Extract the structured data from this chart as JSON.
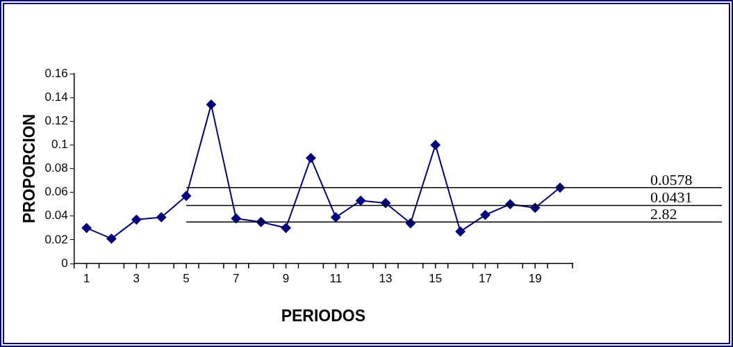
{
  "chart_data": {
    "type": "line",
    "xlabel": "PERIODOS",
    "ylabel": "PROPORCION",
    "x": [
      1,
      2,
      3,
      4,
      5,
      6,
      7,
      8,
      9,
      10,
      11,
      12,
      13,
      14,
      15,
      16,
      17,
      18,
      19,
      20
    ],
    "series": [
      {
        "color": "#000080",
        "values": [
          0.03,
          0.021,
          0.037,
          0.039,
          0.057,
          0.134,
          0.038,
          0.035,
          0.03,
          0.089,
          0.039,
          0.053,
          0.051,
          0.034,
          0.1,
          0.027,
          0.041,
          0.05,
          0.047,
          0.064
        ]
      }
    ],
    "xlim": [
      0.5,
      20.5
    ],
    "xticks": [
      {
        "value": 0.5,
        "label": null
      },
      1,
      {
        "value": 1.5,
        "label": null
      },
      {
        "value": 2.5,
        "label": null
      },
      3,
      {
        "value": 3.5,
        "label": null
      },
      {
        "value": 4.5,
        "label": null
      },
      5,
      {
        "value": 5.5,
        "label": null
      },
      {
        "value": 6.5,
        "label": null
      },
      7,
      {
        "value": 7.5,
        "label": null
      },
      {
        "value": 8.5,
        "label": null
      },
      9,
      {
        "value": 9.5,
        "label": null
      },
      {
        "value": 10.5,
        "label": null
      },
      11,
      {
        "value": 11.5,
        "label": null
      },
      {
        "value": 12.5,
        "label": null
      },
      13,
      {
        "value": 13.5,
        "label": null
      },
      {
        "value": 14.5,
        "label": null
      },
      15,
      {
        "value": 15.5,
        "label": null
      },
      {
        "value": 16.5,
        "label": null
      },
      17,
      {
        "value": 17.5,
        "label": null
      },
      {
        "value": 18.5,
        "label": null
      },
      19,
      {
        "value": 19.5,
        "label": null
      },
      {
        "value": 20.5,
        "label": null
      }
    ],
    "ylim": [
      0,
      0.16
    ],
    "yticks": [
      0,
      0.02,
      0.04,
      0.06,
      0.08,
      0.1,
      0.12,
      0.14,
      0.16
    ],
    "ref_lines": [
      {
        "axis": "y",
        "value": 0.064,
        "color": "#000000"
      },
      {
        "axis": "y",
        "value": 0.049,
        "color": "#000000"
      },
      {
        "axis": "y",
        "value": 0.035,
        "color": "#000000"
      }
    ],
    "annotations": [
      "0.0578",
      "0.0431",
      "2.82"
    ],
    "marker": "diamond",
    "line_style": "solid",
    "grid": false,
    "legend": false
  }
}
